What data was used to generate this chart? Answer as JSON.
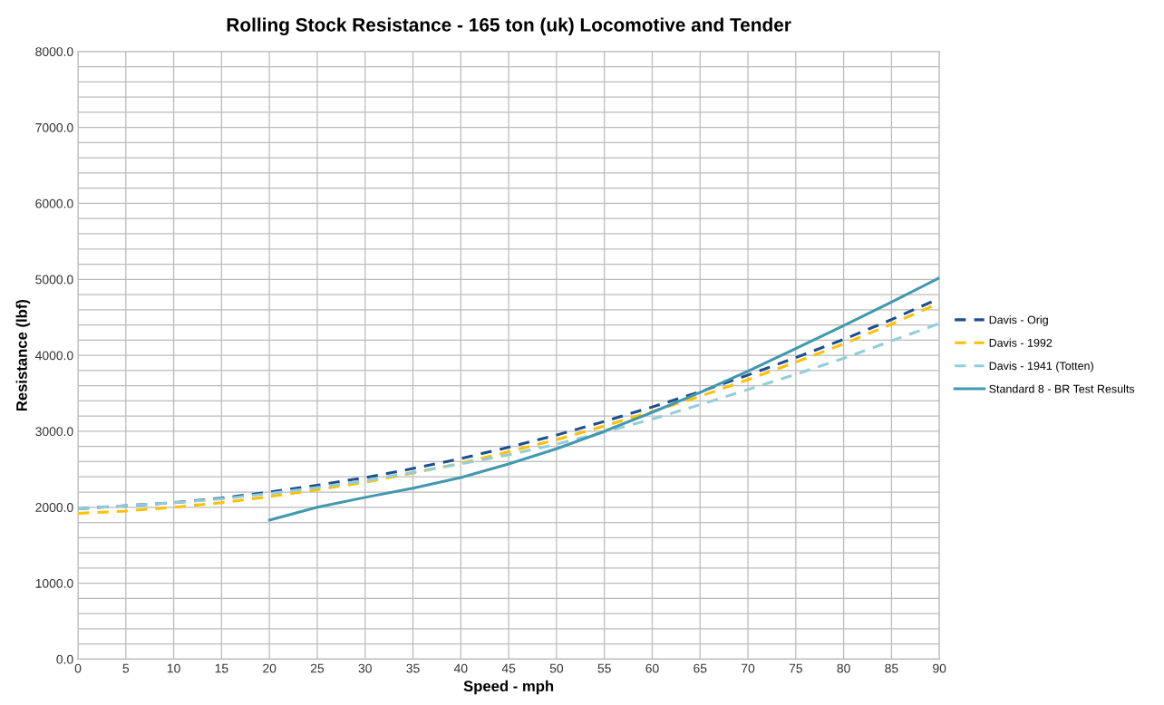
{
  "chart_data": {
    "type": "line",
    "title": "Rolling Stock Resistance - 165 ton (uk) Locomotive and Tender",
    "xlabel": "Speed - mph",
    "ylabel": "Resistance (lbf)",
    "x": [
      0,
      5,
      10,
      15,
      20,
      25,
      30,
      35,
      40,
      45,
      50,
      55,
      60,
      65,
      70,
      75,
      80,
      85,
      90
    ],
    "series": [
      {
        "name": "Davis - Orig",
        "color": "#1f4e8c",
        "line_style": "dashed",
        "values": [
          1980,
          2020,
          2060,
          2120,
          2200,
          2290,
          2390,
          2510,
          2640,
          2790,
          2950,
          3130,
          3320,
          3520,
          3740,
          3970,
          4210,
          4470,
          4750
        ]
      },
      {
        "name": "Davis - 1992",
        "color": "#ffc000",
        "line_style": "dashed",
        "values": [
          1920,
          1950,
          2000,
          2060,
          2140,
          2230,
          2330,
          2450,
          2580,
          2730,
          2890,
          3070,
          3260,
          3460,
          3680,
          3910,
          4150,
          4410,
          4690
        ]
      },
      {
        "name": "Davis - 1941 (Totten)",
        "color": "#92cddc",
        "line_style": "dashed",
        "values": [
          1980,
          2020,
          2060,
          2110,
          2180,
          2260,
          2350,
          2460,
          2570,
          2690,
          2830,
          2990,
          3160,
          3350,
          3550,
          3750,
          3960,
          4190,
          4420
        ]
      },
      {
        "name": "Standard 8 - BR Test Results",
        "color": "#4198af",
        "line_style": "solid",
        "values": [
          null,
          null,
          null,
          null,
          1830,
          2000,
          2130,
          2250,
          2390,
          2570,
          2770,
          3000,
          3250,
          3510,
          3790,
          4090,
          4390,
          4700,
          5020
        ]
      }
    ],
    "xlim": [
      0,
      90
    ],
    "xticks": [
      0,
      5,
      10,
      15,
      20,
      25,
      30,
      35,
      40,
      45,
      50,
      55,
      60,
      65,
      70,
      75,
      80,
      85,
      90
    ],
    "ylim": [
      0,
      8000
    ],
    "yticks": [
      {
        "value": 0,
        "label": "0.0"
      },
      {
        "value": 200,
        "label": null
      },
      {
        "value": 400,
        "label": null
      },
      {
        "value": 600,
        "label": null
      },
      {
        "value": 800,
        "label": null
      },
      {
        "value": 1000,
        "label": "1000.0"
      },
      {
        "value": 1200,
        "label": null
      },
      {
        "value": 1400,
        "label": null
      },
      {
        "value": 1600,
        "label": null
      },
      {
        "value": 1800,
        "label": null
      },
      {
        "value": 2000,
        "label": "2000.0"
      },
      {
        "value": 2200,
        "label": null
      },
      {
        "value": 2400,
        "label": null
      },
      {
        "value": 2600,
        "label": null
      },
      {
        "value": 2800,
        "label": null
      },
      {
        "value": 3000,
        "label": "3000.0"
      },
      {
        "value": 3200,
        "label": null
      },
      {
        "value": 3400,
        "label": null
      },
      {
        "value": 3600,
        "label": null
      },
      {
        "value": 3800,
        "label": null
      },
      {
        "value": 4000,
        "label": "4000.0"
      },
      {
        "value": 4200,
        "label": null
      },
      {
        "value": 4400,
        "label": null
      },
      {
        "value": 4600,
        "label": null
      },
      {
        "value": 4800,
        "label": null
      },
      {
        "value": 5000,
        "label": "5000.0"
      },
      {
        "value": 5200,
        "label": null
      },
      {
        "value": 5400,
        "label": null
      },
      {
        "value": 5600,
        "label": null
      },
      {
        "value": 5800,
        "label": null
      },
      {
        "value": 6000,
        "label": "6000.0"
      },
      {
        "value": 6200,
        "label": null
      },
      {
        "value": 6400,
        "label": null
      },
      {
        "value": 6600,
        "label": null
      },
      {
        "value": 6800,
        "label": null
      },
      {
        "value": 7000,
        "label": "7000.0"
      },
      {
        "value": 7200,
        "label": null
      },
      {
        "value": 7400,
        "label": null
      },
      {
        "value": 7600,
        "label": null
      },
      {
        "value": 7800,
        "label": null
      },
      {
        "value": 8000,
        "label": "8000.0"
      }
    ],
    "grid": true,
    "legend": "right",
    "marker": "none"
  }
}
